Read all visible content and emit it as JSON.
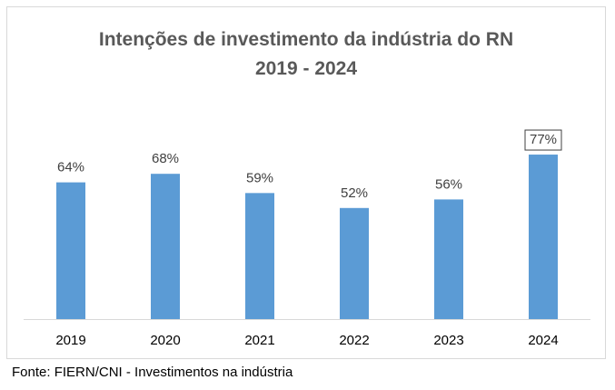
{
  "chart_data": {
    "type": "bar",
    "title_line1": "Intenções de investimento da indústria do RN",
    "title_line2": "2019 - 2024",
    "categories": [
      "2019",
      "2020",
      "2021",
      "2022",
      "2023",
      "2024"
    ],
    "values": [
      64,
      68,
      59,
      52,
      56,
      77
    ],
    "data_labels": [
      "64%",
      "68%",
      "59%",
      "52%",
      "56%",
      "77%"
    ],
    "highlighted_label_index": 5,
    "ylim": [
      0,
      90
    ],
    "grid": false,
    "legend": "none",
    "bar_color": "#5b9bd5"
  },
  "source": "Fonte: FIERN/CNI - Investimentos na indústria"
}
